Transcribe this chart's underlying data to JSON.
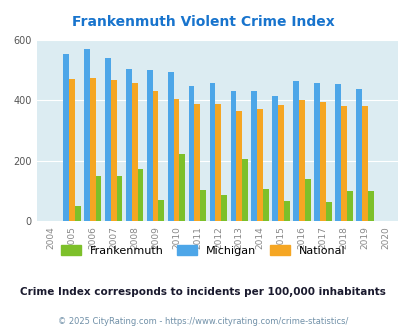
{
  "title": "Frankenmuth Violent Crime Index",
  "years": [
    2004,
    2005,
    2006,
    2007,
    2008,
    2009,
    2010,
    2011,
    2012,
    2013,
    2014,
    2015,
    2016,
    2017,
    2018,
    2019,
    2020
  ],
  "frankenmuth": [
    0,
    50,
    148,
    148,
    172,
    70,
    222,
    103,
    85,
    205,
    105,
    65,
    138,
    62,
    100,
    100,
    0
  ],
  "michigan": [
    0,
    553,
    568,
    538,
    503,
    500,
    493,
    447,
    458,
    430,
    430,
    413,
    462,
    455,
    452,
    438,
    0
  ],
  "national": [
    0,
    470,
    474,
    468,
    458,
    430,
    404,
    387,
    387,
    364,
    372,
    383,
    399,
    395,
    380,
    379,
    0
  ],
  "colors": {
    "frankenmuth": "#7DC02A",
    "michigan": "#4DA6E8",
    "national": "#F5A623"
  },
  "bg_color": "#DCEcF2",
  "ylim": [
    0,
    600
  ],
  "yticks": [
    0,
    200,
    400,
    600
  ],
  "subtitle": "Crime Index corresponds to incidents per 100,000 inhabitants",
  "footer": "© 2025 CityRating.com - https://www.cityrating.com/crime-statistics/",
  "title_color": "#1874CD",
  "subtitle_color": "#1A1A2E",
  "footer_color": "#7090A8"
}
